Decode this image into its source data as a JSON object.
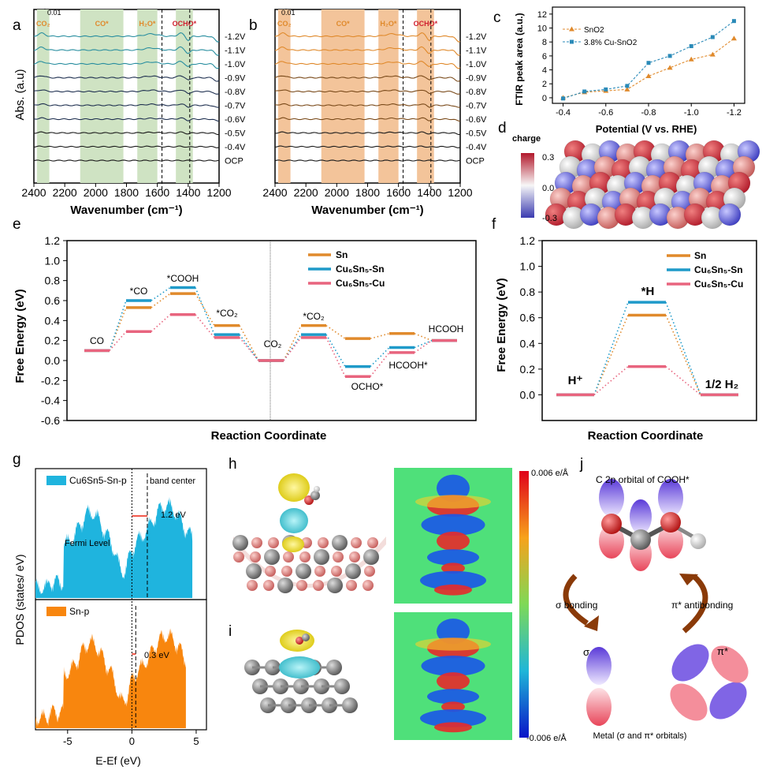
{
  "panel_letters": {
    "a": "a",
    "b": "b",
    "c": "c",
    "d": "d",
    "e": "e",
    "f": "f",
    "g": "g",
    "h": "h",
    "i": "i",
    "j": "j"
  },
  "colors": {
    "green_band": "#cfe3c3",
    "orange_band": "#f3c49a",
    "sn": "#e08a2c",
    "cu_sn": "#1f9ac9",
    "cu_cu": "#e8647e",
    "teal": "#2a8fa0",
    "navy": "#1f3050"
  },
  "chart_data": [
    {
      "id": "a",
      "type": "line",
      "xlabel": "Wavenumber (cm-1)",
      "xlim": [
        2400,
        1200
      ],
      "xticks": [
        "2400",
        "2200",
        "2000",
        "1800",
        "1600",
        "1400",
        "1200"
      ],
      "ylabel": "Abs. (a.u)",
      "scale_bar": "0.01",
      "bands": [
        {
          "label": "CO2",
          "from": 2380,
          "to": 2300
        },
        {
          "label": "CO*",
          "from": 2100,
          "to": 1820
        },
        {
          "label": "H2O*",
          "from": 1730,
          "to": 1600
        },
        {
          "label": "OCHO*",
          "from": 1480,
          "to": 1370
        }
      ],
      "dashed_lines": [
        1570,
        1390
      ],
      "series": [
        "-1.2V",
        "-1.1V",
        "-1.0V",
        "-0.9V",
        "-0.8V",
        "-0.7V",
        "-0.6V",
        "-0.5V",
        "-0.4V",
        "OCP"
      ]
    },
    {
      "id": "b",
      "type": "line",
      "xlabel": "Wavenumber (cm-1)",
      "xlim": [
        2400,
        1200
      ],
      "xticks": [
        "2400",
        "2200",
        "2000",
        "1800",
        "1600",
        "1400",
        "1200"
      ],
      "scale_bar": "0.01",
      "bands": [
        {
          "label": "CO2",
          "from": 2380,
          "to": 2300
        },
        {
          "label": "CO*",
          "from": 2100,
          "to": 1820
        },
        {
          "label": "H2O*",
          "from": 1730,
          "to": 1600
        },
        {
          "label": "OCHO*",
          "from": 1480,
          "to": 1370
        }
      ],
      "dashed_lines": [
        1570,
        1390
      ],
      "series": [
        "-1.2V",
        "-1.1V",
        "-1.0V",
        "-0.9V",
        "-0.8V",
        "-0.7V",
        "-0.6V",
        "-0.5V",
        "-0.4V",
        "OCP"
      ]
    },
    {
      "id": "c",
      "type": "line",
      "xlabel": "Potential (V vs. RHE)",
      "ylabel": "FTIR peak area (a.u.)",
      "xticks": [
        "-0.4",
        "-0.6",
        "-0.8",
        "-1.0",
        "-1.2"
      ],
      "yticks": [
        "0",
        "2",
        "4",
        "6",
        "8",
        "10",
        "12"
      ],
      "xlim": [
        -0.35,
        -1.25
      ],
      "ylim": [
        -0.8,
        13
      ],
      "x": [
        -0.4,
        -0.5,
        -0.6,
        -0.7,
        -0.8,
        -0.9,
        -1.0,
        -1.1,
        -1.2
      ],
      "series": [
        {
          "name": "SnO2",
          "values": [
            0,
            0.8,
            1.0,
            1.2,
            3.1,
            4.3,
            5.5,
            6.2,
            8.5
          ]
        },
        {
          "name": "3.8% Cu-SnO2",
          "values": [
            -0.1,
            0.9,
            1.2,
            1.7,
            5.0,
            6.0,
            7.4,
            8.7,
            11.0
          ]
        }
      ]
    },
    {
      "id": "e",
      "type": "line",
      "ylabel": "Free Energy (eV)",
      "xlabel": "Reaction Coordinate",
      "yticks": [
        "-0.6",
        "-0.4",
        "-0.2",
        "0.0",
        "0.2",
        "0.4",
        "0.6",
        "0.8",
        "1.0",
        "1.2"
      ],
      "ylim": [
        -0.6,
        1.2
      ],
      "legend": [
        "Sn",
        "Cu6Sn5-Sn",
        "Cu6Sn5-Cu"
      ],
      "states": [
        "CO",
        "*CO",
        "*COOH",
        "*CO2",
        "CO2",
        "*CO2",
        "OCHO*",
        "HCOOH*",
        "HCOOH"
      ],
      "series": [
        {
          "name": "Sn",
          "values": [
            0.1,
            0.53,
            0.67,
            0.35,
            0.0,
            0.35,
            0.22,
            0.27,
            0.2
          ]
        },
        {
          "name": "Cu6Sn5-Sn",
          "values": [
            0.1,
            0.6,
            0.73,
            0.26,
            0.0,
            0.26,
            -0.06,
            0.13,
            0.2
          ]
        },
        {
          "name": "Cu6Sn5-Cu",
          "values": [
            0.1,
            0.29,
            0.46,
            0.23,
            0.0,
            0.23,
            -0.16,
            0.08,
            0.2
          ]
        }
      ]
    },
    {
      "id": "f",
      "type": "line",
      "ylabel": "Free Energy (eV)",
      "xlabel": "Reaction Coordinate",
      "yticks": [
        "0.0",
        "0.2",
        "0.4",
        "0.6",
        "0.8",
        "1.0",
        "1.2"
      ],
      "ylim": [
        0,
        1.2
      ],
      "legend": [
        "Sn",
        "Cu6Sn5-Sn",
        "Cu6Sn5-Cu"
      ],
      "states": [
        "H+",
        "*H",
        "1/2 H2"
      ],
      "series": [
        {
          "name": "Sn",
          "values": [
            0,
            0.62,
            0
          ]
        },
        {
          "name": "Cu6Sn5-Sn",
          "values": [
            0,
            0.72,
            0
          ]
        },
        {
          "name": "Cu6Sn5-Cu",
          "values": [
            0,
            0.22,
            0
          ]
        }
      ]
    },
    {
      "id": "g",
      "type": "area",
      "xlabel": "E-Ef (eV)",
      "ylabel": "PDOS (states/ eV)",
      "xticks": [
        "-5",
        "0",
        "5"
      ],
      "xlim": [
        -7.5,
        5.8
      ],
      "panels": [
        {
          "name": "Cu6Sn5-Sn-p",
          "band_center_label": "band center",
          "shift_label": "1.2 eV",
          "fermi_label": "Fermi Level"
        },
        {
          "name": "Sn-p",
          "shift_label": "0.3 eV"
        }
      ]
    }
  ],
  "text": {
    "c_leg1": "SnO2",
    "c_leg2": "3.8% Cu-SnO2",
    "d_charge": "charge",
    "d_max": "0.3",
    "d_mid": "0.0",
    "d_min": "-0.3",
    "g_leg1": "Cu6Sn5-Sn-p",
    "g_band": "band center",
    "g_shift1": "1.2 eV",
    "g_fermi": "Fermi Level",
    "g_leg2": "Sn-p",
    "g_shift2": "0.3 eV",
    "h_cmax": "0.006 e/Å",
    "h_cmin": "-0.006 e/Å",
    "j_title": "C 2p orbital of COOH*",
    "j_sigma_bond": "σ bonding",
    "j_pi_anti": "π* antibonding",
    "j_sigma": "σ",
    "j_pi": "π*",
    "j_metal": "Metal (σ and π* orbitals)"
  }
}
